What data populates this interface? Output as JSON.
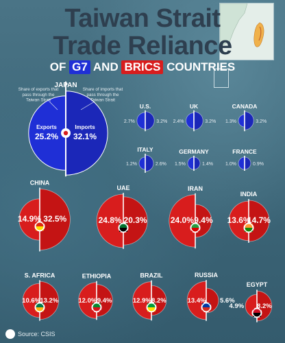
{
  "title_line1": "Taiwan Strait",
  "title_line2": "Trade Reliance",
  "subtitle": {
    "prefix": "OF",
    "g7": "G7",
    "and": "AND",
    "brics": "BRICS",
    "suffix": "COUNTRIES"
  },
  "legend": {
    "exports_note": "Share of exports that pass through the Taiwan Strait",
    "imports_note": "Share of imports that pass through the Taiwan Strait"
  },
  "source": "Source: CSIS",
  "colors": {
    "g7": "#1f2fd6",
    "brics": "#d81d1d",
    "background": "#3d6679"
  },
  "chart_data": [
    {
      "type": "bar",
      "group": "G7",
      "title": "G7",
      "units": "%",
      "countries": [
        "JAPAN",
        "U.S.",
        "UK",
        "CANADA",
        "ITALY",
        "GERMANY",
        "FRANCE"
      ],
      "series": [
        {
          "name": "Exports",
          "values": [
            25.2,
            2.7,
            2.4,
            1.3,
            1.2,
            1.5,
            1.0
          ]
        },
        {
          "name": "Imports",
          "values": [
            32.1,
            3.2,
            3.2,
            3.2,
            2.6,
            1.4,
            0.9
          ]
        }
      ]
    },
    {
      "type": "bar",
      "group": "BRICS",
      "title": "BRICS",
      "units": "%",
      "countries": [
        "CHINA",
        "UAE",
        "IRAN",
        "INDIA",
        "S. AFRICA",
        "ETHIOPIA",
        "BRAZIL",
        "RUSSIA",
        "EGYPT"
      ],
      "series": [
        {
          "name": "Exports",
          "values": [
            14.9,
            24.8,
            24.0,
            13.6,
            10.6,
            12.0,
            12.9,
            13.4,
            4.9
          ]
        },
        {
          "name": "Imports",
          "values": [
            32.5,
            20.3,
            9.4,
            14.7,
            13.2,
            9.4,
            8.2,
            5.6,
            8.2
          ]
        }
      ]
    }
  ]
}
